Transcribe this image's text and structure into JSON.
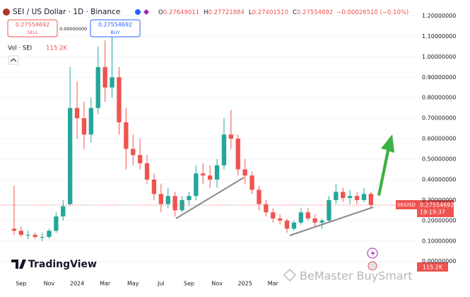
{
  "chart_data": {
    "type": "candlestick",
    "title": "SEI / US Dollar · 1D · Binance",
    "quote": [
      {
        "key": "O",
        "value": "0.27649011"
      },
      {
        "key": "H",
        "value": "0.27721884"
      },
      {
        "key": "L",
        "value": "0.27401510"
      },
      {
        "key": "C",
        "value": "0.27554692"
      }
    ],
    "change": "−0.00026510 (−0.10%)",
    "sell": {
      "price": "0.27554692",
      "label": "SELL"
    },
    "spread": "0.00000000",
    "buy": {
      "price": "0.27554692",
      "label": "BUY"
    },
    "volume_label": "Vol · SEI",
    "volume_value": "115.2K",
    "symbol_tag": {
      "symbol": "SEIUSD",
      "price": "0.27554692",
      "countdown": "19:19:37"
    },
    "volume_badge": "115.2K",
    "logo": "TradingView",
    "watermark": "BeMaster BuySmart",
    "up_color": "#26a69a",
    "down_color": "#ef5350",
    "grid": true,
    "categories": [
      null,
      "Sep",
      null,
      null,
      null,
      "Nov",
      null,
      null,
      null,
      "2024",
      null,
      null,
      null,
      "Mar",
      null,
      null,
      null,
      "May",
      null,
      null,
      null,
      "Jul",
      null,
      null,
      null,
      "Sep",
      null,
      null,
      null,
      "Nov",
      null,
      null,
      null,
      "2025",
      null,
      null,
      null,
      "Mar",
      null,
      null,
      null,
      null,
      null,
      null,
      null,
      null,
      null,
      null,
      null,
      null,
      null,
      null
    ],
    "open": [
      0.16,
      0.15,
      0.13,
      0.13,
      0.12,
      0.12,
      0.15,
      0.22,
      0.28,
      0.75,
      0.7,
      0.62,
      0.75,
      0.95,
      0.85,
      0.9,
      0.68,
      0.55,
      0.52,
      0.48,
      0.4,
      0.33,
      0.28,
      0.32,
      0.25,
      0.3,
      0.32,
      0.43,
      0.42,
      0.4,
      0.47,
      0.62,
      0.6,
      0.45,
      0.42,
      0.35,
      0.28,
      0.24,
      0.21,
      0.2,
      0.16,
      0.19,
      0.24,
      0.21,
      0.19,
      0.2,
      0.3,
      0.34,
      0.31,
      0.32,
      0.3,
      0.33
    ],
    "high": [
      0.37,
      0.17,
      0.15,
      0.14,
      0.14,
      0.16,
      0.24,
      0.3,
      0.95,
      0.88,
      0.78,
      0.8,
      1.05,
      1.08,
      1.12,
      0.95,
      0.75,
      0.62,
      0.6,
      0.52,
      0.43,
      0.38,
      0.36,
      0.34,
      0.32,
      0.34,
      0.47,
      0.48,
      0.47,
      0.5,
      0.7,
      0.74,
      0.62,
      0.5,
      0.44,
      0.37,
      0.3,
      0.26,
      0.23,
      0.21,
      0.2,
      0.26,
      0.26,
      0.23,
      0.21,
      0.32,
      0.38,
      0.36,
      0.35,
      0.34,
      0.36,
      0.34
    ],
    "low": [
      0.13,
      0.12,
      0.11,
      0.11,
      0.1,
      0.11,
      0.14,
      0.2,
      0.27,
      0.6,
      0.55,
      0.58,
      0.72,
      0.78,
      0.8,
      0.62,
      0.45,
      0.47,
      0.45,
      0.38,
      0.3,
      0.24,
      0.26,
      0.22,
      0.24,
      0.27,
      0.3,
      0.38,
      0.36,
      0.36,
      0.45,
      0.55,
      0.42,
      0.38,
      0.33,
      0.25,
      0.22,
      0.19,
      0.18,
      0.14,
      0.15,
      0.18,
      0.2,
      0.17,
      0.16,
      0.19,
      0.28,
      0.29,
      0.28,
      0.28,
      0.29,
      0.26
    ],
    "close": [
      0.15,
      0.13,
      0.13,
      0.12,
      0.12,
      0.15,
      0.22,
      0.27,
      0.75,
      0.7,
      0.62,
      0.75,
      0.95,
      0.85,
      0.9,
      0.68,
      0.55,
      0.52,
      0.48,
      0.4,
      0.33,
      0.28,
      0.32,
      0.25,
      0.3,
      0.32,
      0.43,
      0.42,
      0.4,
      0.47,
      0.62,
      0.6,
      0.45,
      0.42,
      0.35,
      0.28,
      0.24,
      0.21,
      0.2,
      0.16,
      0.19,
      0.24,
      0.21,
      0.19,
      0.2,
      0.3,
      0.34,
      0.31,
      0.32,
      0.3,
      0.33,
      0.27554692
    ],
    "ylim": [
      -0.07,
      1.25
    ],
    "yticks": [
      {
        "value": 0,
        "label": "0.00000000"
      },
      {
        "value": 0.1,
        "label": "0.10000000"
      },
      {
        "value": 0.2,
        "label": "0.20000000"
      },
      {
        "value": 0.3,
        "label": "0.30000000"
      },
      {
        "value": 0.4,
        "label": "0.40000000"
      },
      {
        "value": 0.5,
        "label": "0.50000000"
      },
      {
        "value": 0.6,
        "label": "0.60000000"
      },
      {
        "value": 0.7,
        "label": "0.70000000"
      },
      {
        "value": 0.8,
        "label": "0.80000000"
      },
      {
        "value": 0.9,
        "label": "0.90000000"
      },
      {
        "value": 1.0,
        "label": "1.00000000"
      },
      {
        "value": 1.1,
        "label": "1.10000000"
      },
      {
        "value": 1.2,
        "label": "1.20000000"
      }
    ]
  }
}
